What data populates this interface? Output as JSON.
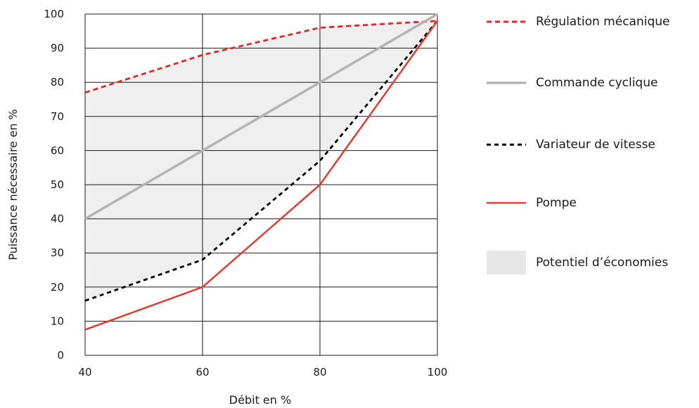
{
  "chart_data": {
    "type": "line",
    "x": [
      40,
      60,
      80,
      100
    ],
    "xlim": [
      40,
      100
    ],
    "ylim": [
      0,
      100
    ],
    "xticks": [
      "40",
      "60",
      "80",
      "100"
    ],
    "yticks": [
      "0",
      "10",
      "20",
      "30",
      "40",
      "50",
      "60",
      "70",
      "80",
      "90",
      "100"
    ],
    "xlabel": "Débit en %",
    "ylabel": "Puissance nécessaire en %",
    "grid": true,
    "legend_position": "right",
    "series": [
      {
        "name": "Régulation mécanique",
        "values": [
          77,
          88,
          96,
          98
        ],
        "color": "#e1271f",
        "style": "dashed"
      },
      {
        "name": "Commande cyclique",
        "values": [
          40,
          60,
          80,
          100
        ],
        "color": "#b3b3b3",
        "style": "solid"
      },
      {
        "name": "Variateur de vitesse",
        "values": [
          16,
          28,
          57,
          98
        ],
        "color": "#000000",
        "style": "dashed"
      },
      {
        "name": "Pompe",
        "values": [
          7.5,
          20,
          50,
          98
        ],
        "color": "#e03c31",
        "style": "solid"
      }
    ],
    "shaded_area": {
      "name": "Potentiel d’économies",
      "color": "#efefef",
      "between": [
        "Régulation mécanique",
        "Variateur de vitesse"
      ]
    }
  }
}
